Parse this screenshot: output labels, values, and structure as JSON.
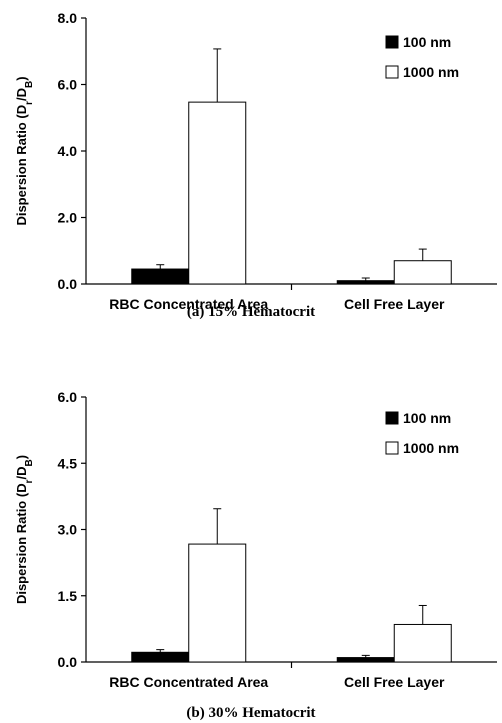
{
  "chart_data": [
    {
      "type": "bar",
      "caption": "(a) 15% Hematocrit",
      "ylabel": {
        "main": "Dispersion Ratio (D",
        "sub1": "r",
        "mid": "/D",
        "sub2": "B",
        "end": ")"
      },
      "ylim": [
        0,
        8
      ],
      "yticks": [
        "0.0",
        "2.0",
        "4.0",
        "6.0",
        "8.0"
      ],
      "ytick_values": [
        0,
        2,
        4,
        6,
        8
      ],
      "categories": [
        "RBC Concentrated Area",
        "Cell Free Layer"
      ],
      "legend_position": "top-right",
      "series": [
        {
          "name": "100 nm",
          "color": "#000000",
          "values": [
            0.45,
            0.1
          ],
          "errors": [
            0.13,
            0.08
          ]
        },
        {
          "name": "1000 nm",
          "color": "#ffffff",
          "values": [
            5.47,
            0.7
          ],
          "errors": [
            1.6,
            0.35
          ]
        }
      ]
    },
    {
      "type": "bar",
      "caption": "(b) 30% Hematocrit",
      "ylabel": {
        "main": "Dispersion Ratio (D",
        "sub1": "r",
        "mid": "/D",
        "sub2": "B",
        "end": ")"
      },
      "ylim": [
        0,
        6
      ],
      "yticks": [
        "0.0",
        "1.5",
        "3.0",
        "4.5",
        "6.0"
      ],
      "ytick_values": [
        0,
        1.5,
        3,
        4.5,
        6
      ],
      "categories": [
        "RBC Concentrated Area",
        "Cell Free Layer"
      ],
      "legend_position": "top-right",
      "series": [
        {
          "name": "100 nm",
          "color": "#000000",
          "values": [
            0.22,
            0.1
          ],
          "errors": [
            0.06,
            0.05
          ]
        },
        {
          "name": "1000 nm",
          "color": "#ffffff",
          "values": [
            2.67,
            0.85
          ],
          "errors": [
            0.8,
            0.43
          ]
        }
      ]
    }
  ]
}
